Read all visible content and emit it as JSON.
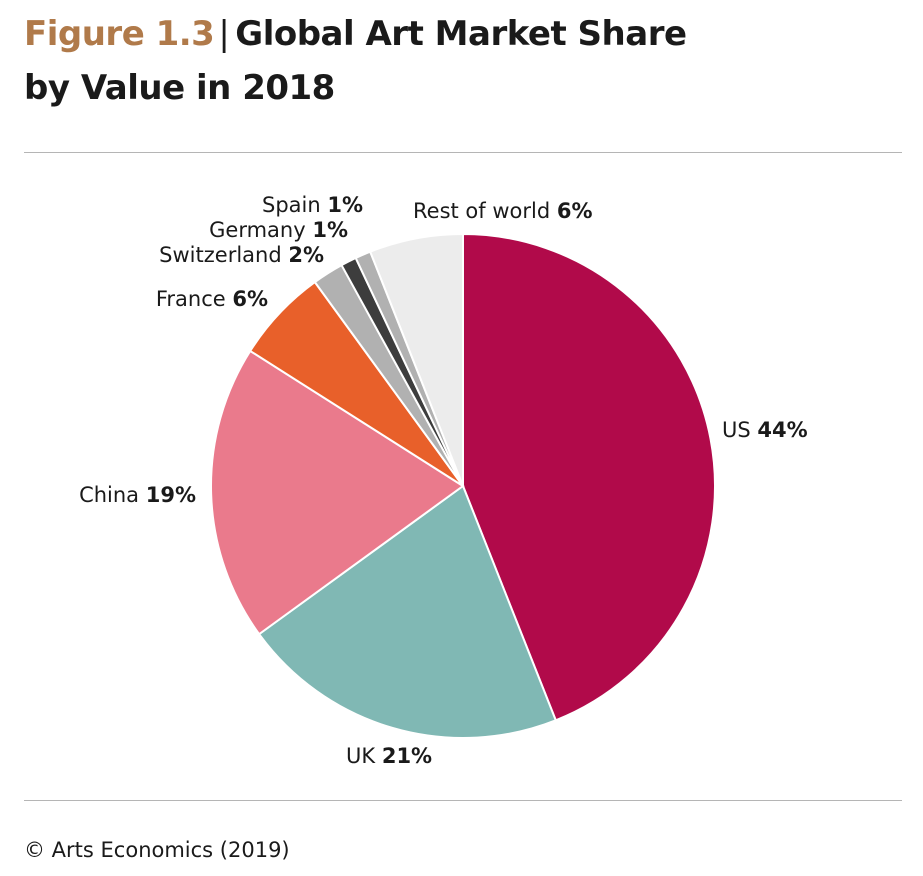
{
  "title": {
    "figure": "Figure 1.3",
    "separator": "|",
    "line1": "Global Art Market Share",
    "line2": "by Value in 2018"
  },
  "source": "© Arts Economics (2019)",
  "chart_data": {
    "type": "pie",
    "title": "Global Art Market Share by Value in 2018",
    "slices": [
      {
        "label": "US",
        "value": 44,
        "display": "44%",
        "color": "#b10a4a"
      },
      {
        "label": "UK",
        "value": 21,
        "display": "21%",
        "color": "#80b8b4"
      },
      {
        "label": "China",
        "value": 19,
        "display": "19%",
        "color": "#ea7a8c"
      },
      {
        "label": "France",
        "value": 6,
        "display": "6%",
        "color": "#e8602a"
      },
      {
        "label": "Switzerland",
        "value": 2,
        "display": "2%",
        "color": "#b1b1b1"
      },
      {
        "label": "Germany",
        "value": 1,
        "display": "1%",
        "color": "#3d3d3d"
      },
      {
        "label": "Spain",
        "value": 1,
        "display": "1%",
        "color": "#b1b1b1"
      },
      {
        "label": "Rest of world",
        "value": 6,
        "display": "6%",
        "color": "#ececec"
      }
    ],
    "start": "12 o'clock",
    "direction": "clockwise"
  }
}
